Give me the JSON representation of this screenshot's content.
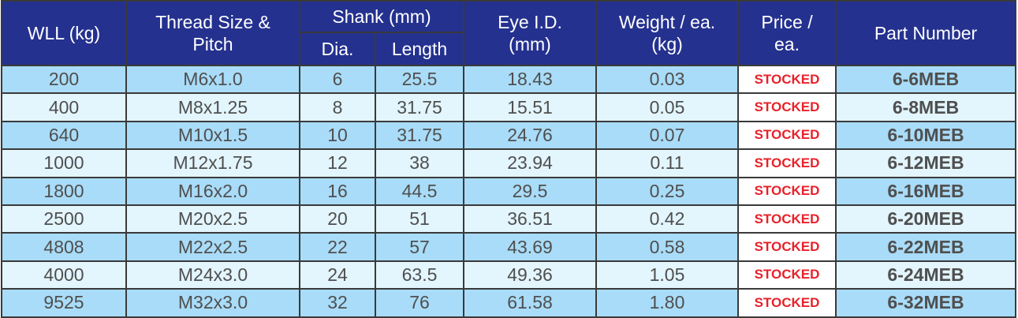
{
  "table": {
    "headers": {
      "wll": "WLL (kg)",
      "thread": "Thread Size & Pitch",
      "shank": "Shank (mm)",
      "shank_dia": "Dia.",
      "shank_length": "Length",
      "eye_id": "Eye I.D. (mm)",
      "weight": "Weight / ea. (kg)",
      "price": "Price / ea.",
      "part_number": "Part Number"
    },
    "rows": [
      {
        "wll": "200",
        "thread": "M6x1.0",
        "dia": "6",
        "length": "25.5",
        "eye": "18.43",
        "weight": "0.03",
        "price": "STOCKED",
        "part": "6-6MEB"
      },
      {
        "wll": "400",
        "thread": "M8x1.25",
        "dia": "8",
        "length": "31.75",
        "eye": "15.51",
        "weight": "0.05",
        "price": "STOCKED",
        "part": "6-8MEB"
      },
      {
        "wll": "640",
        "thread": "M10x1.5",
        "dia": "10",
        "length": "31.75",
        "eye": "24.76",
        "weight": "0.07",
        "price": "STOCKED",
        "part": "6-10MEB"
      },
      {
        "wll": "1000",
        "thread": "M12x1.75",
        "dia": "12",
        "length": "38",
        "eye": "23.94",
        "weight": "0.11",
        "price": "STOCKED",
        "part": "6-12MEB"
      },
      {
        "wll": "1800",
        "thread": "M16x2.0",
        "dia": "16",
        "length": "44.5",
        "eye": "29.5",
        "weight": "0.25",
        "price": "STOCKED",
        "part": "6-16MEB"
      },
      {
        "wll": "2500",
        "thread": "M20x2.5",
        "dia": "20",
        "length": "51",
        "eye": "36.51",
        "weight": "0.42",
        "price": "STOCKED",
        "part": "6-20MEB"
      },
      {
        "wll": "4808",
        "thread": "M22x2.5",
        "dia": "22",
        "length": "57",
        "eye": "43.69",
        "weight": "0.58",
        "price": "STOCKED",
        "part": "6-22MEB"
      },
      {
        "wll": "4000",
        "thread": "M24x3.0",
        "dia": "24",
        "length": "63.5",
        "eye": "49.36",
        "weight": "1.05",
        "price": "STOCKED",
        "part": "6-24MEB"
      },
      {
        "wll": "9525",
        "thread": "M32x3.0",
        "dia": "32",
        "length": "76",
        "eye": "61.58",
        "weight": "1.80",
        "price": "STOCKED",
        "part": "6-32MEB"
      }
    ]
  },
  "colors": {
    "header_bg": "#24318f",
    "row_odd": "#a9dcf8",
    "row_even": "#e3f5fd",
    "stocked_text": "#e8212a"
  }
}
